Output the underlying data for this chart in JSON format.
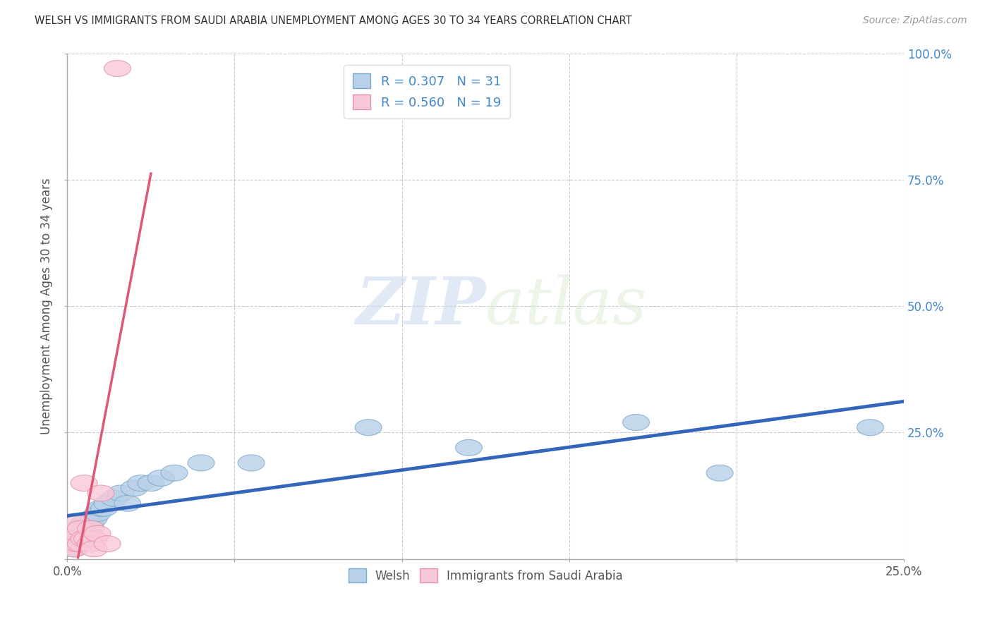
{
  "title": "WELSH VS IMMIGRANTS FROM SAUDI ARABIA UNEMPLOYMENT AMONG AGES 30 TO 34 YEARS CORRELATION CHART",
  "source": "Source: ZipAtlas.com",
  "ylabel": "Unemployment Among Ages 30 to 34 years",
  "xlim": [
    0.0,
    0.25
  ],
  "ylim": [
    0.0,
    1.0
  ],
  "xticks": [
    0.0,
    0.05,
    0.1,
    0.15,
    0.2,
    0.25
  ],
  "yticks": [
    0.0,
    0.25,
    0.5,
    0.75,
    1.0
  ],
  "xtick_labels": [
    "0.0%",
    "",
    "",
    "",
    "",
    "25.0%"
  ],
  "ytick_labels_right": [
    "",
    "25.0%",
    "50.0%",
    "75.0%",
    "100.0%"
  ],
  "welsh_x": [
    0.001,
    0.002,
    0.002,
    0.003,
    0.003,
    0.004,
    0.004,
    0.005,
    0.005,
    0.006,
    0.007,
    0.008,
    0.009,
    0.01,
    0.011,
    0.012,
    0.014,
    0.016,
    0.018,
    0.02,
    0.022,
    0.025,
    0.028,
    0.032,
    0.04,
    0.055,
    0.09,
    0.12,
    0.17,
    0.195,
    0.24
  ],
  "welsh_y": [
    0.03,
    0.02,
    0.05,
    0.03,
    0.06,
    0.04,
    0.06,
    0.05,
    0.07,
    0.06,
    0.07,
    0.08,
    0.09,
    0.1,
    0.1,
    0.11,
    0.12,
    0.13,
    0.11,
    0.14,
    0.15,
    0.15,
    0.16,
    0.17,
    0.19,
    0.19,
    0.26,
    0.22,
    0.27,
    0.17,
    0.26
  ],
  "saudi_x": [
    0.001,
    0.002,
    0.002,
    0.003,
    0.003,
    0.003,
    0.004,
    0.004,
    0.005,
    0.005,
    0.006,
    0.007,
    0.007,
    0.008,
    0.008,
    0.009,
    0.01,
    0.012,
    0.015
  ],
  "saudi_y": [
    0.03,
    0.02,
    0.04,
    0.03,
    0.05,
    0.07,
    0.03,
    0.06,
    0.04,
    0.15,
    0.04,
    0.03,
    0.06,
    0.04,
    0.02,
    0.05,
    0.13,
    0.03,
    0.97
  ],
  "welsh_color": "#b8d0e8",
  "welsh_edge_color": "#7aaad0",
  "saudi_color": "#f8c8d8",
  "saudi_edge_color": "#e890aa",
  "trend_welsh_color": "#3366bb",
  "trend_saudi_color": "#e05878",
  "R_welsh": 0.307,
  "N_welsh": 31,
  "R_saudi": 0.56,
  "N_saudi": 19,
  "legend_color": "#4488cc",
  "watermark_zip": "ZIP",
  "watermark_atlas": "atlas",
  "background_color": "#ffffff",
  "grid_color": "#cccccc",
  "grid_style": "--"
}
